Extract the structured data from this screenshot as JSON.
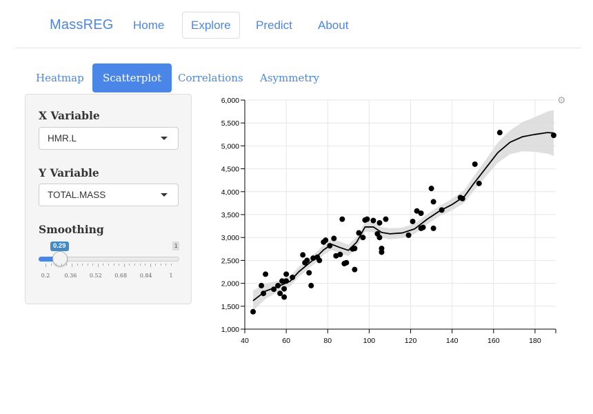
{
  "navbar": {
    "brand": "MassREG",
    "links": [
      "Home",
      "Explore",
      "Predict",
      "About"
    ],
    "active": "Explore"
  },
  "tabs": [
    "Heatmap",
    "Scatterplot",
    "Correlations",
    "Asymmetry"
  ],
  "active_tab": "Scatterplot",
  "sidebar": {
    "x_label": "X Variable",
    "x_value": "HMR.L",
    "y_label": "Y Variable",
    "y_value": "TOTAL.MASS",
    "smoothing_label": "Smoothing",
    "slider": {
      "value": "0.29",
      "max_label": "1",
      "ticks": [
        "0.2",
        "0.36",
        "0.52",
        "0.68",
        "0.84",
        "1"
      ]
    }
  },
  "colors": {
    "accent": "#4a86e8",
    "band": "#d9d9d9",
    "point": "#000000"
  },
  "icons": {
    "chart_settings": "gear-icon",
    "select_caret": "caret-down-icon"
  },
  "chart_data": {
    "type": "scatter",
    "title": "",
    "xlabel": "",
    "ylabel": "",
    "xlim": [
      40,
      190
    ],
    "ylim": [
      1000,
      6000
    ],
    "x_ticks": [
      "40",
      "60",
      "80",
      "100",
      "120",
      "140",
      "160",
      "180"
    ],
    "y_ticks": [
      "1,000",
      "1,500",
      "2,000",
      "2,500",
      "3,000",
      "3,500",
      "4,000",
      "4,500",
      "5,000",
      "5,500",
      "6,000"
    ],
    "grid": true,
    "points": [
      [
        44,
        1380
      ],
      [
        48,
        1950
      ],
      [
        49,
        1780
      ],
      [
        50,
        2200
      ],
      [
        54,
        1870
      ],
      [
        56,
        1950
      ],
      [
        57,
        1780
      ],
      [
        58,
        2050
      ],
      [
        59,
        1880
      ],
      [
        59,
        1700
      ],
      [
        60,
        2200
      ],
      [
        60,
        2050
      ],
      [
        63,
        2130
      ],
      [
        68,
        2620
      ],
      [
        69,
        2450
      ],
      [
        70,
        2500
      ],
      [
        71,
        2230
      ],
      [
        72,
        1950
      ],
      [
        73,
        2550
      ],
      [
        75,
        2570
      ],
      [
        76,
        2500
      ],
      [
        78,
        2900
      ],
      [
        79,
        2940
      ],
      [
        81,
        2820
      ],
      [
        83,
        2980
      ],
      [
        84,
        2600
      ],
      [
        86,
        2630
      ],
      [
        87,
        3400
      ],
      [
        88,
        2430
      ],
      [
        89,
        2450
      ],
      [
        92,
        2750
      ],
      [
        93,
        2760
      ],
      [
        93,
        2300
      ],
      [
        95,
        3100
      ],
      [
        97,
        3000
      ],
      [
        98,
        3380
      ],
      [
        99,
        3400
      ],
      [
        102,
        3370
      ],
      [
        104,
        3080
      ],
      [
        105,
        3320
      ],
      [
        105,
        3000
      ],
      [
        106,
        2760
      ],
      [
        106,
        2680
      ],
      [
        108,
        3400
      ],
      [
        119,
        3050
      ],
      [
        121,
        3350
      ],
      [
        123,
        3580
      ],
      [
        125,
        3530
      ],
      [
        125,
        3200
      ],
      [
        126,
        3220
      ],
      [
        130,
        4070
      ],
      [
        131,
        3780
      ],
      [
        131,
        3200
      ],
      [
        135,
        3600
      ],
      [
        144,
        3870
      ],
      [
        145,
        3850
      ],
      [
        151,
        4600
      ],
      [
        153,
        4180
      ],
      [
        163,
        5290
      ],
      [
        189,
        5230
      ]
    ],
    "smooth_line": {
      "x": [
        44,
        50,
        56,
        62,
        66,
        70,
        74,
        78,
        82,
        86,
        90,
        94,
        98,
        102,
        106,
        110,
        116,
        122,
        128,
        134,
        140,
        146,
        150,
        156,
        162,
        168,
        174,
        180,
        186,
        189
      ],
      "y": [
        1620,
        1830,
        1930,
        2050,
        2250,
        2400,
        2550,
        2730,
        2850,
        2780,
        2720,
        2900,
        3230,
        3230,
        3110,
        3080,
        3100,
        3190,
        3400,
        3580,
        3720,
        3900,
        4150,
        4500,
        4850,
        5080,
        5200,
        5250,
        5290,
        5280
      ]
    },
    "band_width": [
      [
        44,
        220
      ],
      [
        56,
        120
      ],
      [
        66,
        110
      ],
      [
        78,
        110
      ],
      [
        86,
        130
      ],
      [
        98,
        110
      ],
      [
        110,
        120
      ],
      [
        122,
        110
      ],
      [
        134,
        110
      ],
      [
        146,
        140
      ],
      [
        156,
        180
      ],
      [
        168,
        260
      ],
      [
        180,
        380
      ],
      [
        189,
        500
      ]
    ]
  }
}
